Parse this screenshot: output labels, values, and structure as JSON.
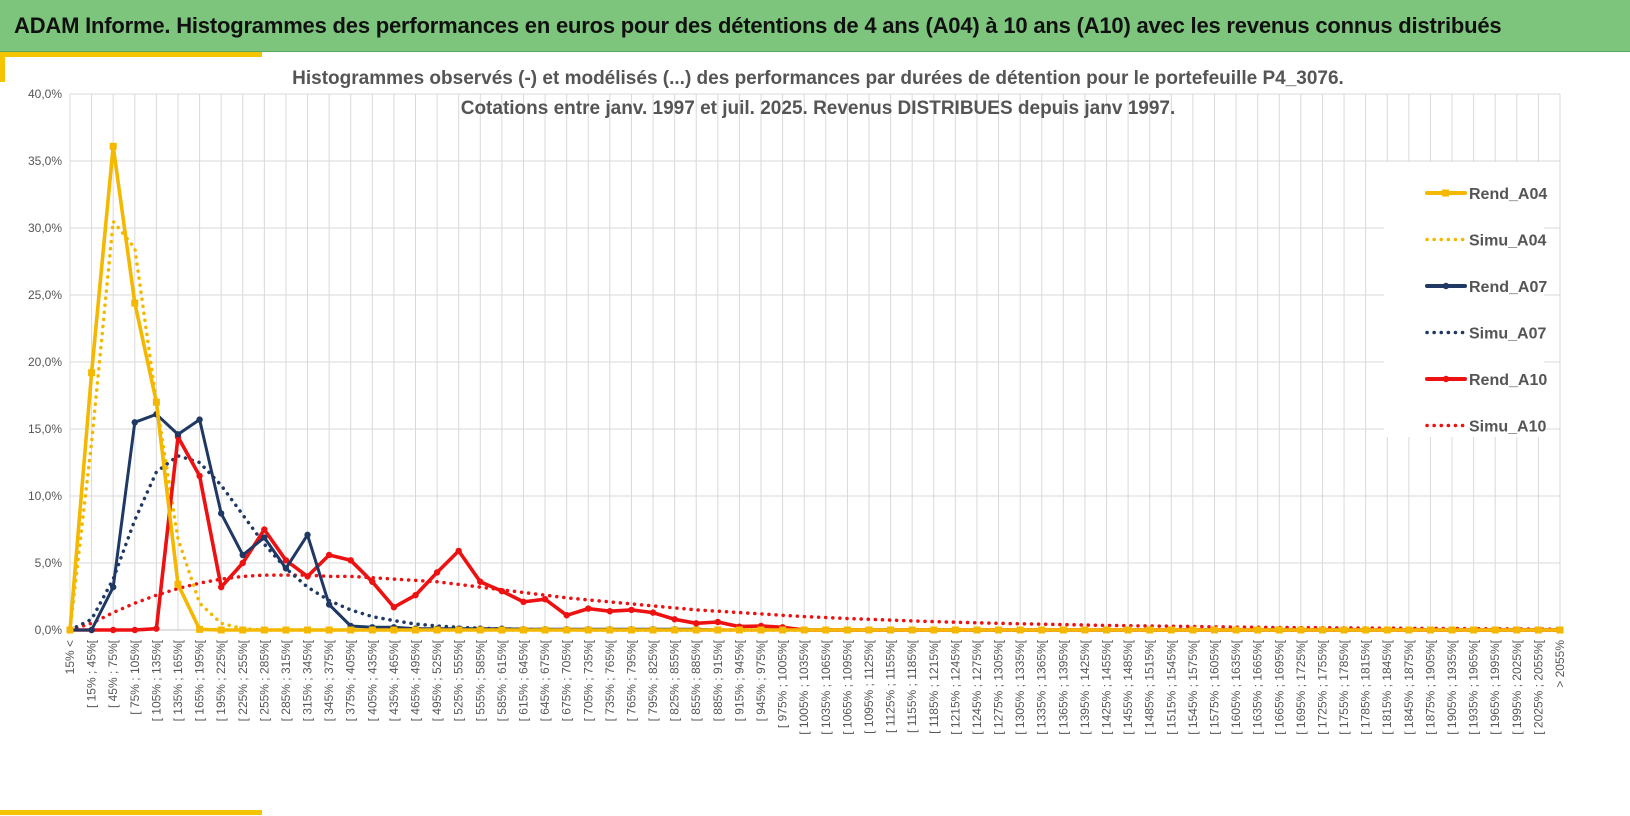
{
  "header": {
    "title": "ADAM Informe. Histogrammes des performances en euros pour des détentions de 4 ans (A04) à 10 ans (A10) avec les revenus connus distribués"
  },
  "colors": {
    "header_bg": "#7dc57c",
    "accent": "#f5c400",
    "A04": "#f5b800",
    "A07": "#1f3864",
    "A10": "#ee1111"
  },
  "chart_data": {
    "type": "line",
    "title": "Histogrammes observés (-) et modélisés (...) des performances par durées de détention pour le portefeuille P4_3076.",
    "subtitle": "Cotations entre janv. 1997 et juil. 2025. Revenus DISTRIBUES depuis janv 1997.",
    "xlabel": "",
    "ylabel": "",
    "ylim": [
      0,
      40
    ],
    "y_ticks": [
      "0,0%",
      "5,0%",
      "10,0%",
      "15,0%",
      "20,0%",
      "25,0%",
      "30,0%",
      "35,0%",
      "40,0%"
    ],
    "grid": true,
    "legend_position": "right",
    "categories": [
      "15% <",
      "[ 15% ; 45%[",
      "[ 45% ; 75%[",
      "[ 75% ; 105%[",
      "[ 105% ; 135%[",
      "[ 135% ; 165%[",
      "[ 165% ; 195%[",
      "[ 195% ; 225%[",
      "[ 225% ; 255%[",
      "[ 255% ; 285%[",
      "[ 285% ; 315%[",
      "[ 315% ; 345%[",
      "[ 345% ; 375%[",
      "[ 375% ; 405%[",
      "[ 405% ; 435%[",
      "[ 435% ; 465%[",
      "[ 465% ; 495%[",
      "[ 495% ; 525%[",
      "[ 525% ; 555%[",
      "[ 555% ; 585%[",
      "[ 585% ; 615%[",
      "[ 615% ; 645%[",
      "[ 645% ; 675%[",
      "[ 675% ; 705%[",
      "[ 705% ; 735%[",
      "[ 735% ; 765%[",
      "[ 765% ; 795%[",
      "[ 795% ; 825%[",
      "[ 825% ; 855%[",
      "[ 855% ; 885%[",
      "[ 885% ; 915%[",
      "[ 915% ; 945%[",
      "[ 945% ; 975%[",
      "[ 975% ; 1005%[",
      "[ 1005% ; 1035%[",
      "[ 1035% ; 1065%[",
      "[ 1065% ; 1095%[",
      "[ 1095% ; 1125%[",
      "[ 1125% ; 1155%[",
      "[ 1155% ; 1185%[",
      "[ 1185% ; 1215%[",
      "[ 1215% ; 1245%[",
      "[ 1245% ; 1275%[",
      "[ 1275% ; 1305%[",
      "[ 1305% ; 1335%[",
      "[ 1335% ; 1365%[",
      "[ 1365% ; 1395%[",
      "[ 1395% ; 1425%[",
      "[ 1425% ; 1455%[",
      "[ 1455% ; 1485%[",
      "[ 1485% ; 1515%[",
      "[ 1515% ; 1545%[",
      "[ 1545% ; 1575%[",
      "[ 1575% ; 1605%[",
      "[ 1605% ; 1635%[",
      "[ 1635% ; 1665%[",
      "[ 1665% ; 1695%[",
      "[ 1695% ; 1725%[",
      "[ 1725% ; 1755%[",
      "[ 1755% ; 1785%[",
      "[ 1785% ; 1815%[",
      "[ 1815% ; 1845%[",
      "[ 1845% ; 1875%[",
      "[ 1875% ; 1905%[",
      "[ 1905% ; 1935%[",
      "[ 1935% ; 1965%[",
      "[ 1965% ; 1995%[",
      "[ 1995% ; 2025%[",
      "[ 2025% ; 2055%[",
      "> 2055%"
    ],
    "series": [
      {
        "name": "Rend_A04",
        "style": "solid",
        "marker": "square",
        "color": "#f5b800",
        "values": [
          0,
          19.2,
          36.1,
          24.4,
          17.0,
          3.4,
          0.05,
          0,
          0,
          0,
          0,
          0,
          0,
          0,
          0,
          0,
          0,
          0,
          0,
          0,
          0,
          0,
          0,
          0,
          0,
          0,
          0,
          0,
          0,
          0,
          0,
          0,
          0,
          0,
          0,
          0,
          0,
          0,
          0,
          0,
          0,
          0,
          0,
          0,
          0,
          0,
          0,
          0,
          0,
          0,
          0,
          0,
          0,
          0,
          0,
          0,
          0,
          0,
          0,
          0,
          0,
          0,
          0,
          0,
          0,
          0,
          0,
          0,
          0,
          0
        ]
      },
      {
        "name": "Simu_A04",
        "style": "dotted",
        "color": "#f5b800",
        "values": [
          0,
          14.0,
          30.5,
          28.5,
          17.0,
          6.8,
          2.0,
          0.5,
          0.1,
          0,
          0,
          0,
          0,
          0,
          0,
          0,
          0,
          0,
          0,
          0,
          0,
          0,
          0,
          0,
          0,
          0,
          0,
          0,
          0,
          0,
          0,
          0,
          0,
          0,
          0,
          0,
          0,
          0,
          0,
          0,
          0,
          0,
          0,
          0,
          0,
          0,
          0,
          0,
          0,
          0,
          0,
          0,
          0,
          0,
          0,
          0,
          0,
          0,
          0,
          0,
          0,
          0,
          0,
          0,
          0,
          0,
          0,
          0,
          0,
          0
        ]
      },
      {
        "name": "Rend_A07",
        "style": "solid",
        "marker": "circle",
        "color": "#1f3864",
        "values": [
          0,
          0,
          3.2,
          15.5,
          16.1,
          14.6,
          15.7,
          8.7,
          5.6,
          6.9,
          4.6,
          7.1,
          1.9,
          0.3,
          0.2,
          0.2,
          0.1,
          0.1,
          0.1,
          0.1,
          0.1,
          0.05,
          0.05,
          0.05,
          0.05,
          0.05,
          0.05,
          0.05,
          0.05,
          0.05,
          0,
          0,
          0,
          0,
          0,
          0,
          0,
          0,
          0,
          0,
          0,
          0,
          0,
          0,
          0,
          0,
          0,
          0,
          0,
          0,
          0,
          0,
          0,
          0,
          0,
          0,
          0,
          0,
          0,
          0,
          0,
          0,
          0,
          0,
          0,
          0,
          0,
          0,
          0,
          0
        ]
      },
      {
        "name": "Simu_A07",
        "style": "dotted",
        "color": "#1f3864",
        "values": [
          0,
          0.8,
          3.8,
          8.2,
          11.8,
          13.0,
          12.5,
          10.8,
          8.6,
          6.4,
          4.6,
          3.2,
          2.2,
          1.5,
          1.0,
          0.7,
          0.45,
          0.3,
          0.2,
          0.13,
          0.08,
          0.05,
          0.03,
          0.02,
          0.01,
          0,
          0,
          0,
          0,
          0,
          0,
          0,
          0,
          0,
          0,
          0,
          0,
          0,
          0,
          0,
          0,
          0,
          0,
          0,
          0,
          0,
          0,
          0,
          0,
          0,
          0,
          0,
          0,
          0,
          0,
          0,
          0,
          0,
          0,
          0,
          0,
          0,
          0,
          0,
          0,
          0,
          0,
          0,
          0,
          0
        ]
      },
      {
        "name": "Rend_A10",
        "style": "solid",
        "marker": "circle",
        "color": "#ee1111",
        "values": [
          0,
          0,
          0,
          0,
          0.1,
          14.4,
          11.5,
          3.2,
          5.0,
          7.5,
          5.2,
          4.0,
          5.6,
          5.2,
          3.6,
          1.7,
          2.6,
          4.3,
          5.9,
          3.6,
          2.9,
          2.1,
          2.3,
          1.1,
          1.6,
          1.4,
          1.5,
          1.3,
          0.8,
          0.5,
          0.6,
          0.25,
          0.3,
          0.2,
          0,
          0,
          0,
          0,
          0,
          0,
          0,
          0,
          0,
          0,
          0,
          0,
          0,
          0,
          0,
          0,
          0,
          0,
          0,
          0,
          0,
          0,
          0,
          0,
          0,
          0,
          0,
          0,
          0,
          0,
          0,
          0,
          0,
          0,
          0,
          0
        ]
      },
      {
        "name": "Simu_A10",
        "style": "dotted",
        "color": "#ee1111",
        "values": [
          0,
          0.5,
          1.3,
          2.0,
          2.6,
          3.1,
          3.5,
          3.8,
          4.0,
          4.1,
          4.1,
          4.1,
          4.0,
          4.0,
          3.9,
          3.8,
          3.7,
          3.6,
          3.4,
          3.2,
          3.0,
          2.8,
          2.6,
          2.4,
          2.25,
          2.1,
          1.95,
          1.8,
          1.65,
          1.5,
          1.4,
          1.3,
          1.2,
          1.1,
          1.0,
          0.93,
          0.86,
          0.8,
          0.74,
          0.68,
          0.63,
          0.58,
          0.54,
          0.5,
          0.46,
          0.43,
          0.4,
          0.37,
          0.34,
          0.32,
          0.3,
          0.28,
          0.26,
          0.24,
          0.22,
          0.2,
          0.19,
          0.18,
          0.17,
          0.16,
          0.15,
          0.14,
          0.13,
          0.12,
          0.11,
          0.1,
          0.09,
          0.08,
          0.07,
          0.06
        ]
      }
    ]
  }
}
